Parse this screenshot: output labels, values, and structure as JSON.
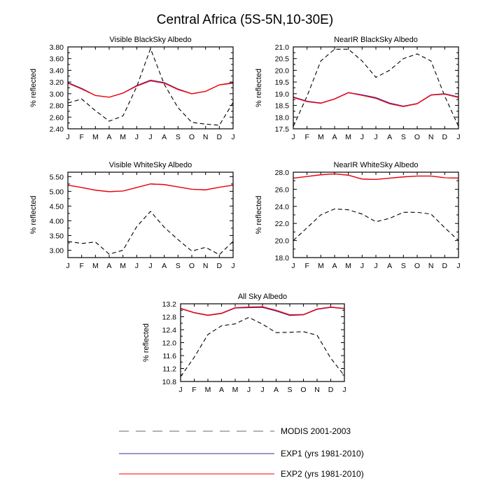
{
  "figure": {
    "title": "Central Africa (5S-5N,10-30E)"
  },
  "chart_data": [
    {
      "type": "line",
      "title": "Visible BlackSky Albedo",
      "ylabel": "% reflected",
      "xlabel": "",
      "x": [
        "J",
        "F",
        "M",
        "A",
        "M",
        "J",
        "J",
        "A",
        "S",
        "O",
        "N",
        "D",
        "J"
      ],
      "ylim": [
        2.4,
        3.8
      ],
      "yticks": [
        "2.40",
        "2.60",
        "2.80",
        "3.00",
        "3.20",
        "3.40",
        "3.60",
        "3.80"
      ],
      "series": [
        {
          "name": "MODIS 2001-2003",
          "color": "#000000",
          "dash": "dashed",
          "values": [
            2.84,
            2.91,
            2.71,
            2.53,
            2.62,
            3.12,
            3.77,
            3.16,
            2.76,
            2.51,
            2.48,
            2.46,
            2.85
          ]
        },
        {
          "name": "EXP1 (yrs 1981-2010)",
          "color": "#3333aa",
          "dash": "solid",
          "values": [
            3.19,
            3.09,
            2.97,
            2.94,
            3.01,
            3.14,
            3.23,
            3.19,
            3.08,
            3.0,
            3.04,
            3.15,
            3.19
          ]
        },
        {
          "name": "EXP2 (yrs 1981-2010)",
          "color": "#ff0000",
          "dash": "solid",
          "values": [
            3.18,
            3.08,
            2.97,
            2.94,
            3.01,
            3.13,
            3.22,
            3.18,
            3.07,
            3.0,
            3.04,
            3.15,
            3.18
          ]
        }
      ]
    },
    {
      "type": "line",
      "title": "NearIR BlackSky Albedo",
      "ylabel": "% reflected",
      "xlabel": "",
      "x": [
        "J",
        "F",
        "M",
        "A",
        "M",
        "J",
        "J",
        "A",
        "S",
        "O",
        "N",
        "D",
        "J"
      ],
      "ylim": [
        17.5,
        21.0
      ],
      "yticks": [
        "17.5",
        "18.0",
        "18.5",
        "19.0",
        "19.5",
        "20.0",
        "20.5",
        "21.0"
      ],
      "series": [
        {
          "name": "MODIS 2001-2003",
          "color": "#000000",
          "dash": "dashed",
          "values": [
            17.6,
            18.9,
            20.4,
            20.9,
            20.9,
            20.4,
            19.7,
            20.0,
            20.5,
            20.7,
            20.4,
            18.9,
            17.6
          ]
        },
        {
          "name": "EXP1 (yrs 1981-2010)",
          "color": "#3333aa",
          "dash": "solid",
          "values": [
            18.86,
            18.68,
            18.6,
            18.78,
            19.05,
            18.95,
            18.83,
            18.6,
            18.47,
            18.58,
            18.95,
            19.0,
            18.86
          ]
        },
        {
          "name": "EXP2 (yrs 1981-2010)",
          "color": "#ff0000",
          "dash": "solid",
          "values": [
            18.84,
            18.66,
            18.59,
            18.77,
            19.04,
            18.93,
            18.8,
            18.57,
            18.45,
            18.57,
            18.94,
            18.98,
            18.84
          ]
        }
      ]
    },
    {
      "type": "line",
      "title": "Visible WhiteSky Albedo",
      "ylabel": "% reflected",
      "xlabel": "",
      "x": [
        "J",
        "F",
        "M",
        "A",
        "M",
        "J",
        "J",
        "A",
        "S",
        "O",
        "N",
        "D",
        "J"
      ],
      "ylim": [
        2.75,
        5.65
      ],
      "yticks": [
        "3.00",
        "3.50",
        "4.00",
        "4.50",
        "5.00",
        "5.50"
      ],
      "series": [
        {
          "name": "MODIS 2001-2003",
          "color": "#000000",
          "dash": "dashed",
          "values": [
            3.3,
            3.23,
            3.28,
            2.87,
            3.0,
            3.8,
            4.32,
            3.78,
            3.36,
            2.97,
            3.1,
            2.85,
            3.3
          ]
        },
        {
          "name": "EXP1 (yrs 1981-2010)",
          "color": "#3333aa",
          "dash": "solid",
          "values": [
            5.21,
            5.13,
            5.04,
            4.99,
            5.01,
            5.13,
            5.25,
            5.23,
            5.15,
            5.07,
            5.05,
            5.14,
            5.21
          ]
        },
        {
          "name": "EXP2 (yrs 1981-2010)",
          "color": "#ff0000",
          "dash": "solid",
          "values": [
            5.21,
            5.13,
            5.04,
            4.99,
            5.01,
            5.13,
            5.25,
            5.23,
            5.15,
            5.07,
            5.05,
            5.14,
            5.21
          ]
        }
      ]
    },
    {
      "type": "line",
      "title": "NearIR WhiteSky Albedo",
      "ylabel": "% reflected",
      "xlabel": "",
      "x": [
        "J",
        "F",
        "M",
        "A",
        "M",
        "J",
        "J",
        "A",
        "S",
        "O",
        "N",
        "D",
        "J"
      ],
      "ylim": [
        18.0,
        28.0
      ],
      "yticks": [
        "18.0",
        "20.0",
        "22.0",
        "24.0",
        "26.0",
        "28.0"
      ],
      "series": [
        {
          "name": "MODIS 2001-2003",
          "color": "#000000",
          "dash": "dashed",
          "values": [
            20.0,
            21.5,
            23.0,
            23.7,
            23.6,
            23.1,
            22.2,
            22.6,
            23.3,
            23.3,
            23.1,
            21.5,
            20.0
          ]
        },
        {
          "name": "EXP1 (yrs 1981-2010)",
          "color": "#3333aa",
          "dash": "solid",
          "values": [
            27.3,
            27.5,
            27.7,
            27.8,
            27.65,
            27.2,
            27.15,
            27.3,
            27.45,
            27.55,
            27.55,
            27.35,
            27.3
          ]
        },
        {
          "name": "EXP2 (yrs 1981-2010)",
          "color": "#ff0000",
          "dash": "solid",
          "values": [
            27.3,
            27.5,
            27.7,
            27.8,
            27.65,
            27.2,
            27.15,
            27.3,
            27.45,
            27.55,
            27.55,
            27.35,
            27.3
          ]
        }
      ]
    },
    {
      "type": "line",
      "title": "All Sky Albedo",
      "ylabel": "% reflected",
      "xlabel": "",
      "x": [
        "J",
        "F",
        "M",
        "A",
        "M",
        "J",
        "J",
        "A",
        "S",
        "O",
        "N",
        "D",
        "J"
      ],
      "ylim": [
        10.8,
        13.2
      ],
      "yticks": [
        "10.8",
        "11.2",
        "11.6",
        "12.0",
        "12.4",
        "12.8",
        "13.2"
      ],
      "series": [
        {
          "name": "MODIS 2001-2003",
          "color": "#000000",
          "dash": "dashed",
          "values": [
            10.95,
            11.55,
            12.25,
            12.52,
            12.58,
            12.78,
            12.57,
            12.31,
            12.32,
            12.34,
            12.23,
            11.52,
            10.98
          ]
        },
        {
          "name": "EXP1 (yrs 1981-2010)",
          "color": "#3333aa",
          "dash": "solid",
          "values": [
            13.05,
            12.92,
            12.84,
            12.9,
            13.07,
            13.08,
            13.09,
            12.98,
            12.84,
            12.86,
            13.03,
            13.09,
            13.05
          ]
        },
        {
          "name": "EXP2 (yrs 1981-2010)",
          "color": "#ff0000",
          "dash": "solid",
          "values": [
            13.06,
            12.93,
            12.85,
            12.91,
            13.08,
            13.1,
            13.11,
            13.0,
            12.86,
            12.87,
            13.04,
            13.1,
            13.06
          ]
        }
      ]
    }
  ],
  "legend": {
    "entries": [
      {
        "label": "MODIS 2001-2003",
        "color": "#888888",
        "dash": "dashed"
      },
      {
        "label": "EXP1 (yrs 1981-2010)",
        "color": "#3333aa",
        "dash": "solid"
      },
      {
        "label": "EXP2 (yrs 1981-2010)",
        "color": "#ff0000",
        "dash": "solid"
      }
    ]
  }
}
